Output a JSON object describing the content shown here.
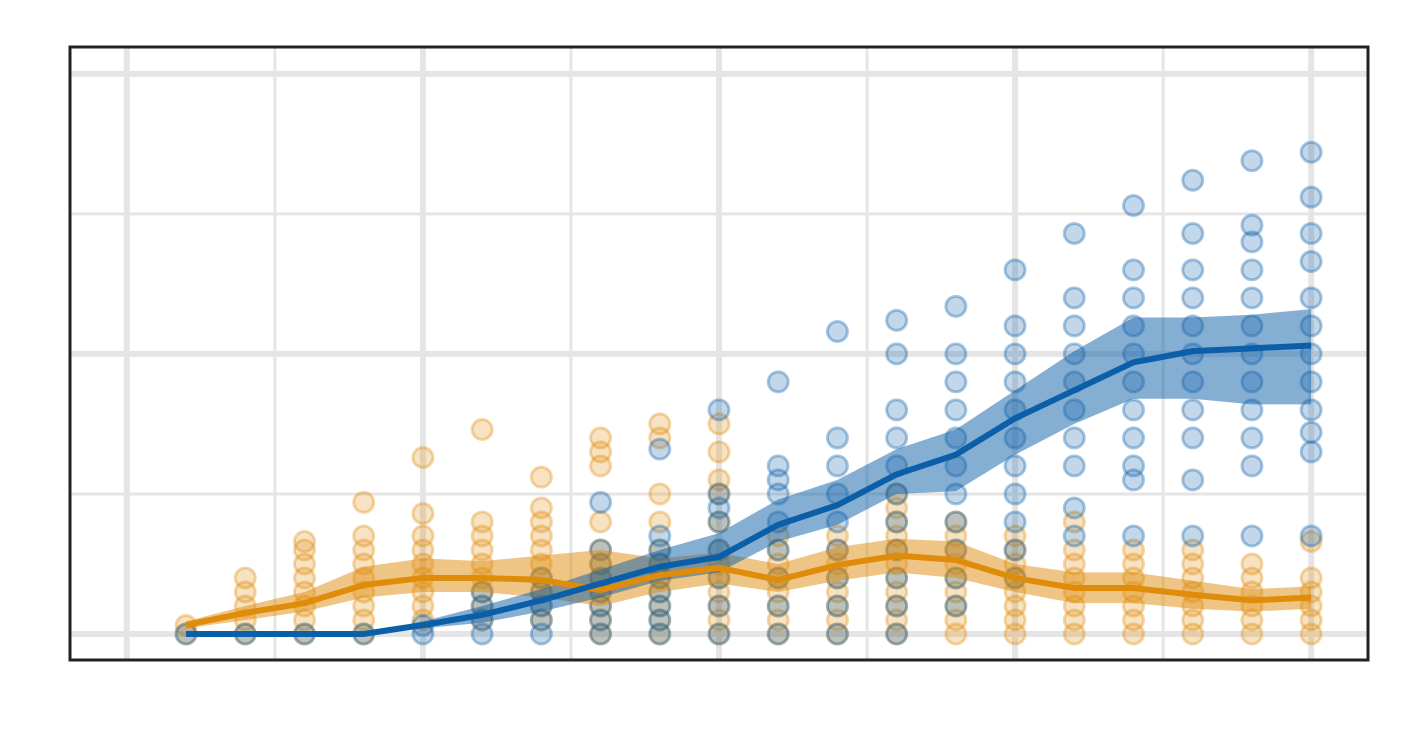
{
  "chart_data": {
    "type": "line",
    "xlim": [
      -0.96,
      20.96
    ],
    "ylim": [
      -0.93,
      20.96
    ],
    "xticks": [
      0,
      2.5,
      5,
      7.5,
      10,
      12.5,
      15,
      17.5,
      20
    ],
    "yticks": [
      0,
      5,
      10,
      15,
      20
    ],
    "grid": true,
    "x": [
      1,
      2,
      3,
      4,
      5,
      6,
      7,
      8,
      9,
      10,
      11,
      12,
      13,
      14,
      15,
      16,
      17,
      18,
      19,
      20
    ],
    "series": [
      {
        "color": "#e08c0b",
        "values": [
          0.32,
          0.75,
          1.1,
          1.75,
          2,
          2,
          1.93,
          1.57,
          2.1,
          2.36,
          1.93,
          2.46,
          2.8,
          2.64,
          2,
          1.64,
          1.64,
          1.4,
          1.2,
          1.3
        ],
        "lower": [
          0.2,
          0.5,
          0.8,
          1.3,
          1.5,
          1.5,
          1.3,
          1.0,
          1.5,
          1.8,
          1.5,
          1.9,
          2.2,
          2.0,
          1.5,
          1.1,
          1.1,
          0.9,
          0.8,
          0.9
        ],
        "upper": [
          0.45,
          1.0,
          1.5,
          2.4,
          2.7,
          2.6,
          2.8,
          3.0,
          2.7,
          2.9,
          2.5,
          3.1,
          3.4,
          3.3,
          2.5,
          2.2,
          2.2,
          1.9,
          1.6,
          1.7
        ],
        "points": [
          [
            0,
            0.3
          ],
          [
            0,
            0.5,
            1,
            1.5,
            2
          ],
          [
            0,
            0.5,
            1,
            1.5,
            2,
            2.5,
            3,
            3.3
          ],
          [
            0,
            0.5,
            1,
            1.5,
            2,
            2.5,
            3,
            3.5,
            4.7
          ],
          [
            0.5,
            1,
            1.5,
            2,
            2.5,
            3,
            3.5,
            4.3,
            6.3
          ],
          [
            0.5,
            1,
            1.5,
            2,
            2.5,
            3,
            3.5,
            4,
            7.3
          ],
          [
            0.5,
            1,
            1.5,
            2,
            2.5,
            3,
            3.5,
            4,
            4.5,
            5.6
          ],
          [
            0,
            0.5,
            1,
            1.5,
            2,
            2.5,
            3,
            4,
            6,
            6.5,
            7
          ],
          [
            0,
            0.5,
            1,
            1.5,
            2,
            2.5,
            3,
            4,
            5,
            7,
            7.5
          ],
          [
            0,
            0.5,
            1,
            1.5,
            2,
            2.5,
            3,
            4,
            5,
            5.5,
            6.5,
            7.5
          ],
          [
            0,
            0.5,
            1,
            1.5,
            2,
            2.5,
            3,
            3.5
          ],
          [
            0,
            0.5,
            1,
            1.5,
            2,
            2.5,
            3,
            3.5
          ],
          [
            0,
            0.5,
            1,
            1.5,
            2,
            2.5,
            3,
            3.5,
            4,
            4.5,
            5
          ],
          [
            0,
            0.5,
            1,
            1.5,
            2,
            2.5,
            3,
            3.5,
            4
          ],
          [
            0,
            0.5,
            1,
            1.5,
            2,
            2.5,
            3,
            3.5
          ],
          [
            0,
            0.5,
            1,
            1.5,
            2,
            2.5,
            3,
            4
          ],
          [
            0,
            0.5,
            1,
            1.5,
            2,
            2.5,
            3
          ],
          [
            0,
            0.5,
            1,
            1.5,
            2,
            2.5,
            3
          ],
          [
            0,
            0.5,
            1,
            1.5,
            2,
            2.5
          ],
          [
            0,
            0.5,
            1,
            1.5,
            2,
            3.3
          ]
        ]
      },
      {
        "color": "#0b5ea8",
        "values": [
          0,
          0,
          0,
          0,
          0.32,
          0.68,
          1.2,
          1.8,
          2.4,
          2.75,
          3.9,
          4.6,
          5.7,
          6.4,
          7.7,
          8.7,
          9.7,
          10.1,
          10.2,
          10.3
        ],
        "lower": [
          0,
          0,
          0,
          0,
          0.2,
          0.4,
          0.8,
          1.3,
          1.9,
          2.2,
          3.3,
          3.9,
          5.0,
          5.1,
          6.4,
          7.5,
          8.4,
          8.4,
          8.2,
          8.2
        ],
        "upper": [
          0,
          0,
          0,
          0,
          0.45,
          1.0,
          1.6,
          2.3,
          3.0,
          3.6,
          4.8,
          5.5,
          6.6,
          7.3,
          8.7,
          10.1,
          11.3,
          11.3,
          11.4,
          11.6
        ],
        "points": [
          [
            0
          ],
          [
            0
          ],
          [
            0
          ],
          [
            0
          ],
          [
            0,
            0.3
          ],
          [
            0,
            0.5,
            1,
            1.5
          ],
          [
            0,
            0.5,
            1,
            1.5,
            2
          ],
          [
            0,
            0.5,
            1,
            1.5,
            2,
            2.5,
            3,
            4.7
          ],
          [
            0,
            0.5,
            1,
            1.5,
            2,
            2.5,
            3,
            3.5,
            6.6
          ],
          [
            0,
            1,
            2,
            3,
            4,
            4.5,
            5,
            8
          ],
          [
            0,
            1,
            2,
            3,
            4,
            5,
            5.5,
            6,
            9
          ],
          [
            0,
            1,
            2,
            3,
            4,
            5,
            6,
            7,
            10.8
          ],
          [
            0,
            1,
            2,
            3,
            4,
            5,
            6,
            7,
            8,
            10,
            11.2
          ],
          [
            1,
            2,
            3,
            4,
            5,
            6,
            7,
            8,
            9,
            10,
            11.7
          ],
          [
            2,
            3,
            4,
            5,
            6,
            7,
            8,
            9,
            10,
            11,
            13
          ],
          [
            3.5,
            4.5,
            6,
            7,
            8,
            9,
            10,
            11,
            12,
            14.3
          ],
          [
            3.5,
            5.5,
            6,
            7,
            8,
            9,
            10,
            11,
            12,
            13,
            15.3
          ],
          [
            3.5,
            5.5,
            7,
            8,
            9,
            10,
            11,
            12,
            13,
            14.3,
            16.2
          ],
          [
            3.5,
            6,
            7,
            8,
            9,
            10,
            11,
            12,
            13,
            14,
            14.6,
            16.9
          ],
          [
            3.5,
            6.5,
            7.2,
            8,
            9,
            10,
            11,
            12,
            13.3,
            14.3,
            15.6,
            17.2
          ]
        ]
      }
    ]
  }
}
